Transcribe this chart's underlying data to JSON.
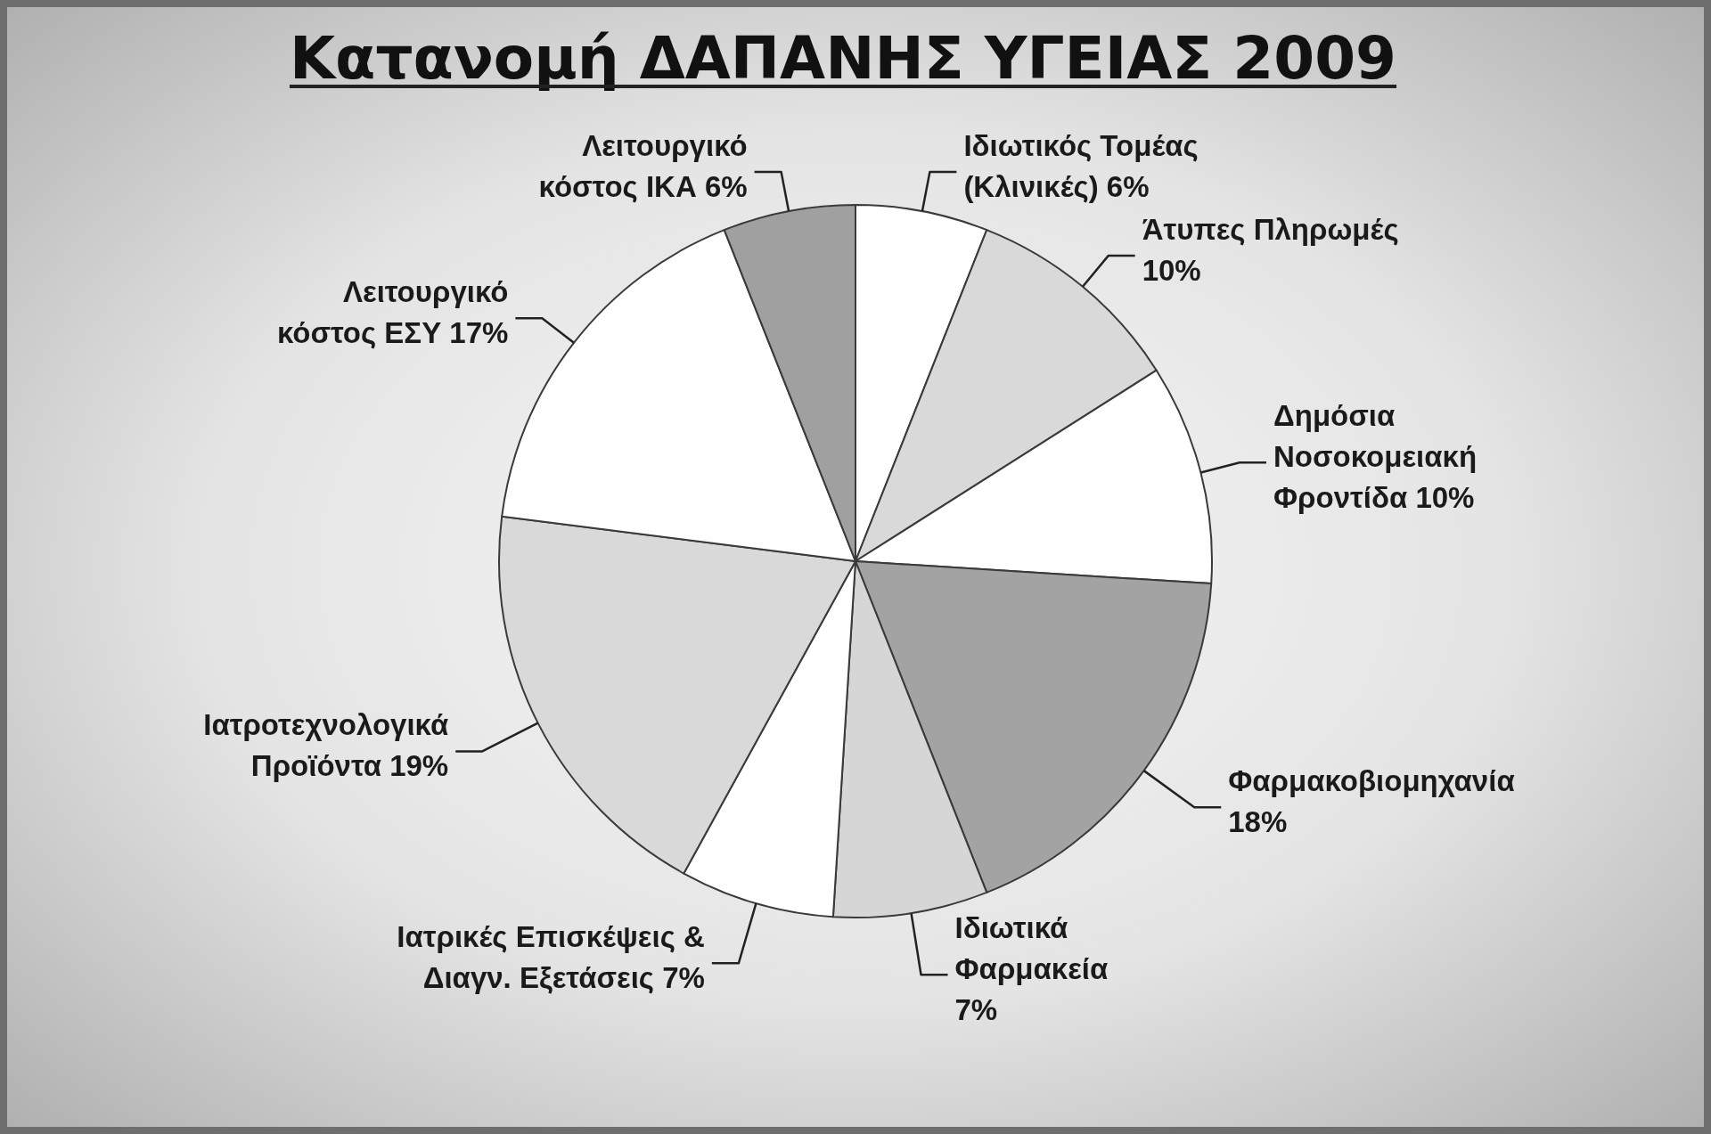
{
  "chart_data": {
    "type": "pie",
    "title": "Κατανομή ΔΑΠΑΝΗΣ ΥΓΕΙΑΣ 2009",
    "categories": [
      "Ιδιωτικός Τομέας (Κλινικές)",
      "Άτυπες Πληρωμές",
      "Δημόσια Νοσοκομειακή Φροντίδα",
      "Φαρμακοβιομηχανία",
      "Ιδιωτικά Φαρμακεία",
      "Ιατρικές Επισκέψεις & Διαγν. Εξετάσεις",
      "Ιατροτεχνολογικά Προϊόντα",
      "Λειτουργικό κόστος ΕΣΥ",
      "Λειτουργικό κόστος ΙΚΑ"
    ],
    "values": [
      6,
      10,
      10,
      18,
      7,
      7,
      19,
      17,
      6
    ],
    "value_labels": [
      "6%",
      "10%",
      "10%",
      "18%",
      "7%",
      "7%",
      "19%",
      "17%",
      "6%"
    ],
    "colors": [
      "#ffffff",
      "#d9d9d9",
      "#ffffff",
      "#a3a3a3",
      "#d6d6d6",
      "#ffffff",
      "#d9d9d9",
      "#ffffff",
      "#a0a0a0"
    ]
  }
}
